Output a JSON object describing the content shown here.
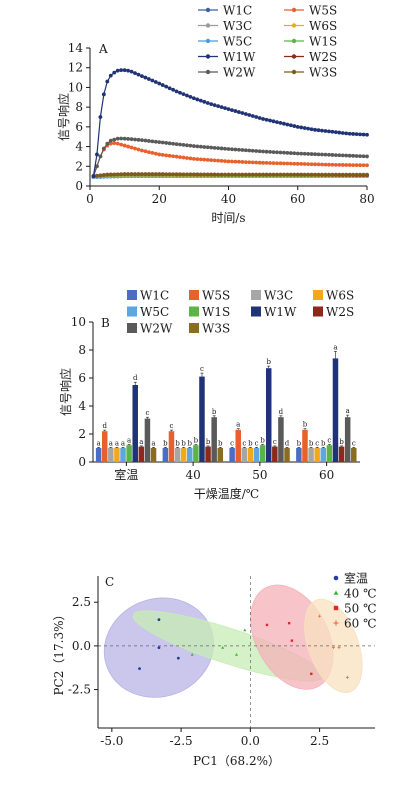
{
  "chart_data": [
    {
      "panel": "A",
      "type": "line",
      "xlabel": "时间/s",
      "ylabel": "信号响应",
      "xlim": [
        0,
        80
      ],
      "ylim": [
        0,
        14
      ],
      "xticks": [
        0,
        20,
        40,
        60,
        80
      ],
      "yticks": [
        0,
        2,
        4,
        6,
        8,
        10,
        12,
        14
      ],
      "legend_position": "top",
      "series": [
        {
          "name": "W1C",
          "color": "#3b5fa8",
          "x": [
            1,
            5,
            10,
            20,
            40,
            60,
            80
          ],
          "y": [
            0.9,
            0.95,
            1.0,
            1.0,
            1.0,
            1.0,
            1.0
          ]
        },
        {
          "name": "W5S",
          "color": "#e8602c",
          "x": [
            1,
            2,
            3,
            4,
            5,
            6,
            7,
            8,
            10,
            12,
            15,
            20,
            30,
            40,
            50,
            60,
            70,
            80
          ],
          "y": [
            1.0,
            2.0,
            3.0,
            3.7,
            4.1,
            4.3,
            4.35,
            4.3,
            4.1,
            3.9,
            3.6,
            3.2,
            2.75,
            2.5,
            2.35,
            2.25,
            2.15,
            2.1
          ]
        },
        {
          "name": "W3C",
          "color": "#9a9a9a",
          "x": [
            1,
            5,
            10,
            20,
            40,
            60,
            80
          ],
          "y": [
            0.9,
            0.95,
            1.0,
            1.0,
            1.0,
            1.0,
            1.0
          ]
        },
        {
          "name": "W6S",
          "color": "#f2a81d",
          "x": [
            1,
            5,
            10,
            20,
            40,
            60,
            80
          ],
          "y": [
            1.0,
            1.05,
            1.1,
            1.1,
            1.05,
            1.05,
            1.05
          ]
        },
        {
          "name": "W5C",
          "color": "#4d9ed8",
          "x": [
            1,
            5,
            10,
            20,
            40,
            60,
            80
          ],
          "y": [
            0.9,
            0.95,
            1.0,
            1.0,
            1.0,
            1.0,
            1.0
          ]
        },
        {
          "name": "W1S",
          "color": "#5cb347",
          "x": [
            1,
            5,
            10,
            20,
            40,
            60,
            80
          ],
          "y": [
            1.0,
            1.1,
            1.15,
            1.15,
            1.1,
            1.1,
            1.1
          ]
        },
        {
          "name": "W1W",
          "color": "#1f3376",
          "x": [
            1,
            2,
            3,
            4,
            5,
            6,
            7,
            8,
            9,
            10,
            11,
            12,
            14,
            16,
            18,
            20,
            25,
            30,
            35,
            40,
            45,
            50,
            55,
            60,
            65,
            70,
            75,
            80
          ],
          "y": [
            1.0,
            3.2,
            7.0,
            9.3,
            10.6,
            11.2,
            11.5,
            11.7,
            11.75,
            11.75,
            11.7,
            11.6,
            11.3,
            11.0,
            10.7,
            10.4,
            9.6,
            8.9,
            8.3,
            7.8,
            7.3,
            6.8,
            6.4,
            6.0,
            5.7,
            5.5,
            5.3,
            5.2
          ]
        },
        {
          "name": "W2S",
          "color": "#8a2a1a",
          "x": [
            1,
            5,
            10,
            20,
            40,
            60,
            80
          ],
          "y": [
            1.0,
            1.15,
            1.2,
            1.2,
            1.15,
            1.15,
            1.1
          ]
        },
        {
          "name": "W2W",
          "color": "#5a5a5a",
          "x": [
            1,
            2,
            3,
            4,
            5,
            6,
            7,
            8,
            9,
            10,
            12,
            15,
            20,
            25,
            30,
            40,
            50,
            60,
            70,
            80
          ],
          "y": [
            1.0,
            2.0,
            3.0,
            3.8,
            4.3,
            4.6,
            4.7,
            4.8,
            4.82,
            4.8,
            4.75,
            4.65,
            4.45,
            4.25,
            4.05,
            3.75,
            3.5,
            3.3,
            3.15,
            3.0
          ]
        },
        {
          "name": "W3S",
          "color": "#7d5a1e",
          "x": [
            1,
            5,
            10,
            20,
            40,
            60,
            80
          ],
          "y": [
            1.0,
            1.15,
            1.2,
            1.2,
            1.15,
            1.15,
            1.15
          ]
        }
      ]
    },
    {
      "panel": "B",
      "type": "bar",
      "xlabel": "干燥温度/℃",
      "ylabel": "信号响应",
      "ylim": [
        0,
        10
      ],
      "yticks": [
        0,
        2,
        4,
        6,
        8,
        10
      ],
      "categories": [
        "室温",
        "40",
        "50",
        "60"
      ],
      "legend_position": "top",
      "series": [
        {
          "name": "W1C",
          "color": "#4a6fc0",
          "values": [
            1.0,
            1.0,
            1.0,
            1.0
          ],
          "errors": [
            0.05,
            0.05,
            0.05,
            0.05
          ],
          "letters": [
            "a",
            "b",
            "c",
            "b"
          ]
        },
        {
          "name": "W5S",
          "color": "#e8602c",
          "values": [
            2.2,
            2.2,
            2.3,
            2.3
          ],
          "errors": [
            0.08,
            0.08,
            0.08,
            0.08
          ],
          "letters": [
            "d",
            "c",
            "a",
            "b"
          ]
        },
        {
          "name": "W3C",
          "color": "#a6a6a6",
          "values": [
            1.0,
            1.0,
            1.0,
            1.0
          ],
          "errors": [
            0.05,
            0.05,
            0.05,
            0.05
          ],
          "letters": [
            "a",
            "b",
            "c",
            "b"
          ]
        },
        {
          "name": "W6S",
          "color": "#f2a81d",
          "values": [
            1.0,
            1.0,
            1.0,
            1.0
          ],
          "errors": [
            0.05,
            0.05,
            0.05,
            0.05
          ],
          "letters": [
            "a",
            "b",
            "b",
            "c"
          ]
        },
        {
          "name": "W5C",
          "color": "#5ea6e0",
          "values": [
            1.0,
            1.0,
            1.0,
            1.0
          ],
          "errors": [
            0.05,
            0.05,
            0.05,
            0.05
          ],
          "letters": [
            "a",
            "b",
            "c",
            "b"
          ]
        },
        {
          "name": "W1S",
          "color": "#5cb347",
          "values": [
            1.2,
            1.2,
            1.2,
            1.2
          ],
          "errors": [
            0.05,
            0.05,
            0.05,
            0.05
          ],
          "letters": [
            "a",
            "b",
            "b",
            "c"
          ]
        },
        {
          "name": "W1W",
          "color": "#1f3376",
          "values": [
            5.5,
            6.1,
            6.7,
            7.4
          ],
          "errors": [
            0.2,
            0.25,
            0.15,
            0.5
          ],
          "letters": [
            "d",
            "c",
            "b",
            "a"
          ]
        },
        {
          "name": "W2S",
          "color": "#8a2a1a",
          "values": [
            1.1,
            1.1,
            1.1,
            1.1
          ],
          "errors": [
            0.05,
            0.05,
            0.05,
            0.05
          ],
          "letters": [
            "a",
            "b",
            "c",
            "b"
          ]
        },
        {
          "name": "W2W",
          "color": "#5a5a5a",
          "values": [
            3.1,
            3.2,
            3.2,
            3.2
          ],
          "errors": [
            0.1,
            0.1,
            0.1,
            0.15
          ],
          "letters": [
            "c",
            "b",
            "d",
            "a"
          ]
        },
        {
          "name": "W3S",
          "color": "#8a6d22",
          "values": [
            1.0,
            1.0,
            1.0,
            1.0
          ],
          "errors": [
            0.05,
            0.05,
            0.05,
            0.05
          ],
          "letters": [
            "a",
            "b",
            "d",
            "c"
          ]
        }
      ]
    },
    {
      "panel": "C",
      "type": "scatter",
      "xlabel": "PC1（68.2%）",
      "ylabel": "PC2（17.3%）",
      "xlim": [
        -5.5,
        4.5
      ],
      "ylim": [
        -4.7,
        4.0
      ],
      "xticks": [
        -5.0,
        -2.5,
        0.0,
        2.5
      ],
      "yticks": [
        -2.5,
        0.0,
        2.5
      ],
      "legend_position": "top-right",
      "series": [
        {
          "name": "室温",
          "marker": "circle",
          "color": "#1f3ba8",
          "ellipse_fill": "#b8b3e6",
          "points": [
            [
              -4.0,
              -1.3
            ],
            [
              -3.3,
              1.5
            ],
            [
              -3.3,
              -0.1
            ],
            [
              -2.6,
              -0.7
            ]
          ],
          "ellipse": {
            "cx": -3.3,
            "cy": -0.1,
            "rx": 2.0,
            "ry": 2.8,
            "angle": -20
          }
        },
        {
          "name": "40 ℃",
          "marker": "triangle",
          "color": "#33b833",
          "ellipse_fill": "#c7ecb4",
          "points": [
            [
              -2.1,
              -0.5
            ],
            [
              -1.0,
              -0.1
            ],
            [
              -0.2,
              0.9
            ],
            [
              -0.5,
              -0.5
            ]
          ],
          "ellipse": {
            "cx": -0.8,
            "cy": 0.0,
            "rx": 3.6,
            "ry": 1.0,
            "angle": 18
          }
        },
        {
          "name": "50 ℃",
          "marker": "square",
          "color": "#e02828",
          "ellipse_fill": "#f4b0b8",
          "points": [
            [
              0.6,
              1.2
            ],
            [
              1.4,
              1.3
            ],
            [
              1.5,
              0.3
            ],
            [
              2.2,
              -1.6
            ]
          ],
          "ellipse": {
            "cx": 1.5,
            "cy": 0.5,
            "rx": 1.3,
            "ry": 3.2,
            "angle": -28
          }
        },
        {
          "name": "60 ℃",
          "marker": "plus",
          "color": "#e8622c",
          "ellipse_fill": "#f8e2bf",
          "points": [
            [
              2.5,
              1.7
            ],
            [
              3.0,
              -0.1
            ],
            [
              3.2,
              -0.1
            ],
            [
              3.5,
              -1.8
            ]
          ],
          "ellipse": {
            "cx": 3.0,
            "cy": 0.0,
            "rx": 0.9,
            "ry": 2.8,
            "angle": -20
          }
        }
      ]
    }
  ]
}
